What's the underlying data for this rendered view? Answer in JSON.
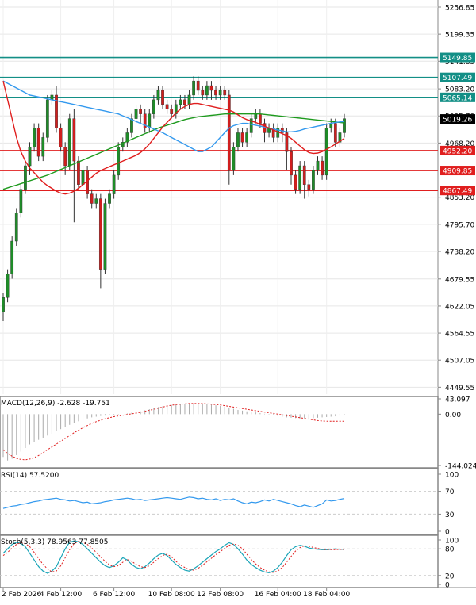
{
  "chart_data": {
    "type": "candlestick",
    "main": {
      "y_ticks": [
        5256.85,
        5199.35,
        5141.85,
        5083.2,
        5025.7,
        4968.2,
        4910.7,
        4853.2,
        4795.7,
        4738.2,
        4679.55,
        4622.05,
        4564.55,
        4507.05,
        4449.55
      ],
      "y_tick_labels": [
        "5256.85",
        "5199.35",
        "5141.85",
        "5083.20",
        "5025.70",
        "4968.20",
        "4910.70",
        "4853.20",
        "4795.70",
        "4738.20",
        "4679.55",
        "4622.05",
        "4564.55",
        "4507.05",
        "4449.55"
      ],
      "ylim": [
        4435,
        5272
      ],
      "current_price": {
        "value": 5019.26,
        "label": "5019.26",
        "color": "#000000"
      },
      "levels": [
        {
          "value": 5149.85,
          "label": "5149.85",
          "color": "#138f86"
        },
        {
          "value": 5107.49,
          "label": "5107.49",
          "color": "#138f86"
        },
        {
          "value": 5065.14,
          "label": "5065.14",
          "color": "#138f86"
        },
        {
          "value": 4952.2,
          "label": "4952.20",
          "color": "#e01e1e"
        },
        {
          "value": 4909.85,
          "label": "4909.85",
          "color": "#e01e1e"
        },
        {
          "value": 4867.49,
          "label": "4867.49",
          "color": "#e01e1e"
        }
      ],
      "candles": [
        [
          4610,
          4640,
          4590,
          4650
        ],
        [
          4640,
          4690,
          4630,
          4700
        ],
        [
          4690,
          4760,
          4680,
          4770
        ],
        [
          4760,
          4820,
          4750,
          4830
        ],
        [
          4820,
          4870,
          4810,
          4880
        ],
        [
          4870,
          4920,
          4860,
          4930
        ],
        [
          4920,
          4960,
          4900,
          4970
        ],
        [
          4960,
          5000,
          4950,
          5010
        ],
        [
          5000,
          4940,
          4930,
          5010
        ],
        [
          4940,
          4980,
          4930,
          4990
        ],
        [
          4980,
          5060,
          4970,
          5070
        ],
        [
          5060,
          5070,
          5050,
          5080
        ],
        [
          5070,
          5000,
          4990,
          5090
        ],
        [
          5000,
          4960,
          4950,
          5010
        ],
        [
          4960,
          4920,
          4900,
          4970
        ],
        [
          4920,
          5020,
          4910,
          5030
        ],
        [
          5020,
          4930,
          4800,
          5040
        ],
        [
          4930,
          4880,
          4870,
          4940
        ],
        [
          4880,
          4910,
          4870,
          4920
        ],
        [
          4910,
          4860,
          4850,
          4920
        ],
        [
          4860,
          4840,
          4830,
          4870
        ],
        [
          4840,
          4850,
          4830,
          4860
        ],
        [
          4850,
          4700,
          4660,
          4860
        ],
        [
          4700,
          4840,
          4690,
          4850
        ],
        [
          4840,
          4860,
          4830,
          4870
        ],
        [
          4860,
          4900,
          4850,
          4910
        ],
        [
          4900,
          4960,
          4890,
          4970
        ],
        [
          4960,
          4970,
          4950,
          4980
        ],
        [
          4970,
          4990,
          4960,
          5000
        ],
        [
          4990,
          5020,
          4980,
          5030
        ],
        [
          5020,
          5040,
          5010,
          5050
        ],
        [
          5040,
          5030,
          5010,
          5050
        ],
        [
          5030,
          5000,
          4990,
          5040
        ],
        [
          5000,
          5030,
          4990,
          5040
        ],
        [
          5030,
          5060,
          5020,
          5070
        ],
        [
          5060,
          5080,
          5050,
          5090
        ],
        [
          5080,
          5050,
          5040,
          5090
        ],
        [
          5050,
          5040,
          5030,
          5060
        ],
        [
          5040,
          5030,
          5020,
          5050
        ],
        [
          5030,
          5050,
          5020,
          5060
        ],
        [
          5050,
          5060,
          5040,
          5070
        ],
        [
          5060,
          5050,
          5040,
          5070
        ],
        [
          5050,
          5070,
          5040,
          5080
        ],
        [
          5070,
          5100,
          5060,
          5110
        ],
        [
          5100,
          5080,
          5070,
          5110
        ],
        [
          5080,
          5070,
          5060,
          5090
        ],
        [
          5070,
          5090,
          5060,
          5100
        ],
        [
          5090,
          5080,
          5060,
          5100
        ],
        [
          5080,
          5070,
          5060,
          5090
        ],
        [
          5070,
          5080,
          5060,
          5090
        ],
        [
          5080,
          5070,
          5060,
          5090
        ],
        [
          5070,
          4910,
          4880,
          5080
        ],
        [
          4910,
          4960,
          4900,
          4970
        ],
        [
          4960,
          4990,
          4950,
          5000
        ],
        [
          4990,
          4970,
          4960,
          5000
        ],
        [
          4970,
          4990,
          4960,
          5000
        ],
        [
          4990,
          5020,
          4980,
          5030
        ],
        [
          5020,
          5030,
          5010,
          5040
        ],
        [
          5030,
          5010,
          5000,
          5040
        ],
        [
          5010,
          4990,
          4970,
          5020
        ],
        [
          4990,
          5000,
          4980,
          5010
        ],
        [
          5000,
          4980,
          4970,
          5010
        ],
        [
          4980,
          5000,
          4970,
          5010
        ],
        [
          5000,
          4990,
          4970,
          5010
        ],
        [
          4990,
          4950,
          4910,
          5000
        ],
        [
          4950,
          4900,
          4880,
          4960
        ],
        [
          4900,
          4870,
          4860,
          4910
        ],
        [
          4870,
          4920,
          4860,
          4930
        ],
        [
          4920,
          4880,
          4850,
          4930
        ],
        [
          4880,
          4870,
          4855,
          4890
        ],
        [
          4870,
          4910,
          4860,
          4920
        ],
        [
          4910,
          4930,
          4900,
          4940
        ],
        [
          4930,
          4900,
          4890,
          4940
        ],
        [
          4900,
          5000,
          4890,
          5010
        ],
        [
          5000,
          5010,
          4990,
          5020
        ],
        [
          5010,
          4970,
          4960,
          5020
        ],
        [
          4970,
          4990,
          4960,
          5000
        ],
        [
          4990,
          5020,
          4980,
          5030
        ]
      ],
      "ma_blue": [
        5100,
        5095,
        5090,
        5085,
        5080,
        5075,
        5070,
        5068,
        5066,
        5064,
        5062,
        5060,
        5058,
        5056,
        5054,
        5052,
        5050,
        5048,
        5046,
        5044,
        5042,
        5040,
        5038,
        5036,
        5034,
        5032,
        5030,
        5026,
        5022,
        5018,
        5014,
        5010,
        5006,
        5002,
        4998,
        4994,
        4990,
        4985,
        4980,
        4975,
        4970,
        4965,
        4960,
        4955,
        4950,
        4950,
        4955,
        4960,
        4970,
        4980,
        4990,
        5000,
        5005,
        5008,
        5010,
        5010,
        5008,
        5006,
        5004,
        5002,
        5000,
        4998,
        4996,
        4994,
        4992,
        4992,
        4993,
        4995,
        4998,
        5000,
        5002,
        5004,
        5006,
        5008,
        5010,
        5012,
        5013,
        5014
      ],
      "ma_red": [
        5100,
        5060,
        5020,
        4980,
        4950,
        4930,
        4915,
        4905,
        4895,
        4885,
        4878,
        4872,
        4866,
        4862,
        4860,
        4862,
        4866,
        4872,
        4880,
        4888,
        4896,
        4904,
        4910,
        4914,
        4918,
        4922,
        4926,
        4930,
        4934,
        4938,
        4942,
        4948,
        4956,
        4966,
        4978,
        4990,
        5002,
        5012,
        5022,
        5032,
        5040,
        5046,
        5050,
        5052,
        5052,
        5050,
        5048,
        5046,
        5044,
        5042,
        5040,
        5038,
        5034,
        5028,
        5022,
        5018,
        5015,
        5012,
        5008,
        5004,
        5000,
        4996,
        4992,
        4988,
        4984,
        4978,
        4970,
        4962,
        4954,
        4948,
        4946,
        4947,
        4950,
        4955,
        4960,
        4966,
        4972,
        4978
      ],
      "ma_green": [
        4870,
        4873,
        4876,
        4879,
        4882,
        4885,
        4888,
        4891,
        4894,
        4897,
        4900,
        4904,
        4908,
        4912,
        4916,
        4920,
        4924,
        4928,
        4932,
        4936,
        4940,
        4944,
        4948,
        4952,
        4956,
        4960,
        4964,
        4968,
        4972,
        4976,
        4980,
        4984,
        4988,
        4992,
        4996,
        5000,
        5003,
        5006,
        5009,
        5012,
        5015,
        5018,
        5020,
        5022,
        5024,
        5025,
        5026,
        5027,
        5028,
        5029,
        5030,
        5030,
        5030,
        5030,
        5030,
        5030,
        5030,
        5030,
        5030,
        5029,
        5028,
        5027,
        5026,
        5025,
        5024,
        5023,
        5022,
        5021,
        5020,
        5019,
        5018,
        5017,
        5016,
        5015,
        5014,
        5013,
        5012,
        5011
      ],
      "colors": {
        "bull": "#1e8c28",
        "bear": "#d01e1e",
        "ma_blue": "#3399ee",
        "ma_red": "#e01e1e",
        "ma_green": "#1e9a1e"
      }
    },
    "macd": {
      "label": "MACD(12,26,9) -2.628 -19.751",
      "y_tick_labels": [
        "43.097",
        "0.00",
        "-144.024"
      ],
      "ylim": [
        -144.024,
        43.097
      ],
      "histogram": [
        -120,
        -130,
        -125,
        -115,
        -105,
        -95,
        -85,
        -78,
        -72,
        -66,
        -60,
        -55,
        -48,
        -42,
        -36,
        -30,
        -24,
        -20,
        -16,
        -12,
        -9,
        -7,
        -5,
        -4,
        -3,
        -2,
        -1,
        0,
        2,
        4,
        6,
        8,
        11,
        14,
        17,
        20,
        22,
        24,
        26,
        27,
        28,
        29,
        30,
        30,
        30,
        29,
        28,
        27,
        25,
        23,
        21,
        18,
        15,
        12,
        10,
        8,
        6,
        5,
        3,
        1,
        -1,
        -3,
        -5,
        -7,
        -9,
        -10,
        -11,
        -12,
        -12,
        -12,
        -11,
        -10,
        -9,
        -8,
        -7,
        -6,
        -4,
        -3
      ],
      "signal": [
        -100,
        -110,
        -118,
        -124,
        -127,
        -128,
        -126,
        -122,
        -116,
        -108,
        -100,
        -92,
        -84,
        -76,
        -68,
        -60,
        -52,
        -45,
        -38,
        -32,
        -26,
        -21,
        -17,
        -13,
        -10,
        -7,
        -5,
        -3,
        -1,
        1,
        3,
        5,
        8,
        11,
        14,
        17,
        20,
        23,
        25,
        27,
        28,
        29,
        30,
        30,
        30,
        30,
        29,
        28,
        27,
        26,
        24,
        22,
        20,
        18,
        16,
        14,
        12,
        10,
        8,
        6,
        4,
        2,
        0,
        -2,
        -4,
        -6,
        -8,
        -10,
        -12,
        -14,
        -16,
        -18,
        -19,
        -20,
        -20,
        -20,
        -20,
        -19.751
      ]
    },
    "rsi": {
      "label": "RSI(14) 57.5200",
      "y_tick_labels": [
        "100",
        "70",
        "30",
        "0"
      ],
      "y_ticks": [
        100,
        70,
        30,
        0
      ],
      "values": [
        40,
        42,
        44,
        45,
        47,
        48,
        50,
        52,
        53,
        55,
        56,
        57,
        58,
        56,
        55,
        53,
        54,
        52,
        50,
        51,
        48,
        49,
        50,
        52,
        53,
        55,
        56,
        57,
        58,
        57,
        55,
        56,
        54,
        55,
        56,
        57,
        58,
        59,
        58,
        57,
        56,
        58,
        60,
        59,
        57,
        58,
        56,
        55,
        57,
        54,
        56,
        55,
        57,
        53,
        50,
        48,
        51,
        50,
        52,
        55,
        53,
        56,
        54,
        52,
        50,
        48,
        45,
        43,
        46,
        44,
        42,
        45,
        48,
        55,
        53,
        54,
        56,
        57.52
      ]
    },
    "stoch": {
      "label": "Stoch(5,3,3) 78.9563 77.8505",
      "y_tick_labels": [
        "100",
        "80",
        "20",
        "0"
      ],
      "y_ticks": [
        100,
        80,
        20,
        0
      ],
      "k": [
        70,
        80,
        90,
        95,
        92,
        85,
        70,
        55,
        40,
        30,
        25,
        30,
        40,
        60,
        80,
        95,
        98,
        96,
        90,
        80,
        70,
        60,
        50,
        42,
        38,
        42,
        50,
        60,
        55,
        45,
        38,
        35,
        40,
        48,
        58,
        66,
        70,
        65,
        55,
        45,
        38,
        32,
        30,
        35,
        42,
        50,
        58,
        66,
        74,
        80,
        88,
        94,
        90,
        80,
        68,
        55,
        45,
        38,
        32,
        28,
        26,
        30,
        38,
        50,
        65,
        78,
        85,
        88,
        86,
        82,
        80,
        79,
        78,
        78,
        79,
        80,
        79,
        78.96
      ],
      "d": [
        65,
        72,
        82,
        90,
        94,
        92,
        85,
        72,
        58,
        45,
        35,
        28,
        30,
        42,
        60,
        78,
        92,
        97,
        95,
        90,
        82,
        72,
        62,
        52,
        44,
        40,
        42,
        50,
        56,
        52,
        45,
        40,
        38,
        42,
        50,
        58,
        65,
        68,
        62,
        52,
        44,
        38,
        33,
        32,
        36,
        43,
        51,
        59,
        67,
        74,
        81,
        88,
        91,
        88,
        80,
        68,
        56,
        46,
        38,
        32,
        28,
        27,
        30,
        38,
        50,
        63,
        75,
        83,
        87,
        86,
        83,
        81,
        79,
        78,
        78,
        78,
        79,
        77.85
      ]
    },
    "x_tick_labels": [
      "2 Feb 2026",
      "4 Feb 12:00",
      "6 Feb 12:00",
      "10 Feb 08:00",
      "12 Feb 08:00",
      "16 Feb 04:00",
      "18 Feb 04:00"
    ],
    "x_tick_indexes": [
      0,
      13,
      25,
      38,
      49,
      62,
      73
    ]
  }
}
